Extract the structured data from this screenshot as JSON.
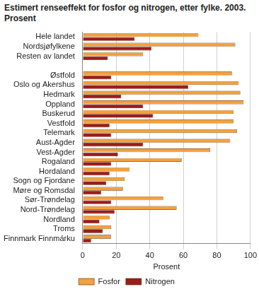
{
  "chart_data": {
    "type": "bar",
    "orientation": "horizontal",
    "title": "Estimert renseeffekt for fosfor og nitrogen, etter fylke. 2003. Prosent",
    "x_label": "Prosent",
    "categories": [
      "Hele landet",
      "Nordsjøfylkene",
      "Resten av landet",
      null,
      "Østfold",
      "Oslo og Akershus",
      "Hedmark",
      "Oppland",
      "Buskerud",
      "Vestfold",
      "Telemark",
      "Aust-Agder",
      "Vest-Agder",
      "Rogaland",
      "Hordaland",
      "Sogn og Fjordane",
      "Møre og Romsdal",
      "Sør-Trøndelag",
      "Nord-Trøndelag",
      "Nordland",
      "Troms",
      "Finnmark Finnmárku"
    ],
    "series": [
      {
        "name": "Fosfor",
        "color": "#f5a03c",
        "values": [
          69,
          91,
          36,
          null,
          89,
          93,
          94,
          96,
          90,
          90,
          92,
          88,
          76,
          59,
          28,
          25,
          24,
          48,
          56,
          16,
          17,
          17
        ]
      },
      {
        "name": "Nitrogen",
        "color": "#9b1c1c",
        "values": [
          31,
          41,
          15,
          null,
          17,
          63,
          23,
          36,
          42,
          16,
          17,
          36,
          21,
          17,
          16,
          14,
          11,
          17,
          19,
          10,
          12,
          5
        ]
      }
    ],
    "xlim": [
      0,
      100
    ],
    "xticks": [
      0,
      20,
      40,
      60,
      80,
      100
    ],
    "grid": true,
    "legend": "bottom"
  }
}
